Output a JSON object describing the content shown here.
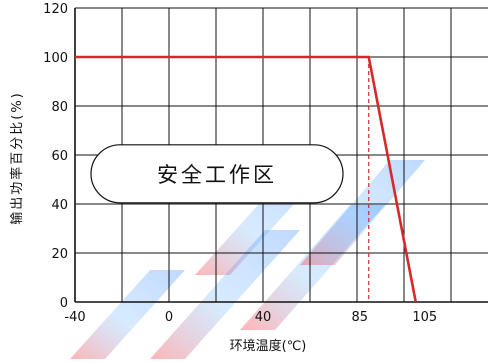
{
  "chart_data": {
    "type": "line",
    "title": "",
    "xlabel": "环境温度(℃)",
    "ylabel": "输出功率百分比(%)",
    "xlim": [
      -40,
      140
    ],
    "ylim": [
      0,
      120
    ],
    "x_ticks": [
      -40,
      0,
      40,
      85,
      105
    ],
    "x_tick_labels": [
      "-40",
      "0",
      "40",
      "85",
      "105"
    ],
    "y_ticks": [
      0,
      20,
      40,
      60,
      80,
      100,
      120
    ],
    "y_tick_labels": [
      "0",
      "20",
      "40",
      "60",
      "80",
      "100",
      "120"
    ],
    "grid": true,
    "series": [
      {
        "color": "#d42a2a",
        "x": [
          -40,
          85,
          105
        ],
        "y": [
          100,
          100,
          0
        ]
      }
    ],
    "reference_lines": [
      {
        "axis": "x",
        "value": 85,
        "style": "dashed",
        "color": "#d42a2a"
      }
    ],
    "annotations": [
      {
        "text": "安全工作区",
        "x": 0,
        "y": 56
      }
    ]
  }
}
